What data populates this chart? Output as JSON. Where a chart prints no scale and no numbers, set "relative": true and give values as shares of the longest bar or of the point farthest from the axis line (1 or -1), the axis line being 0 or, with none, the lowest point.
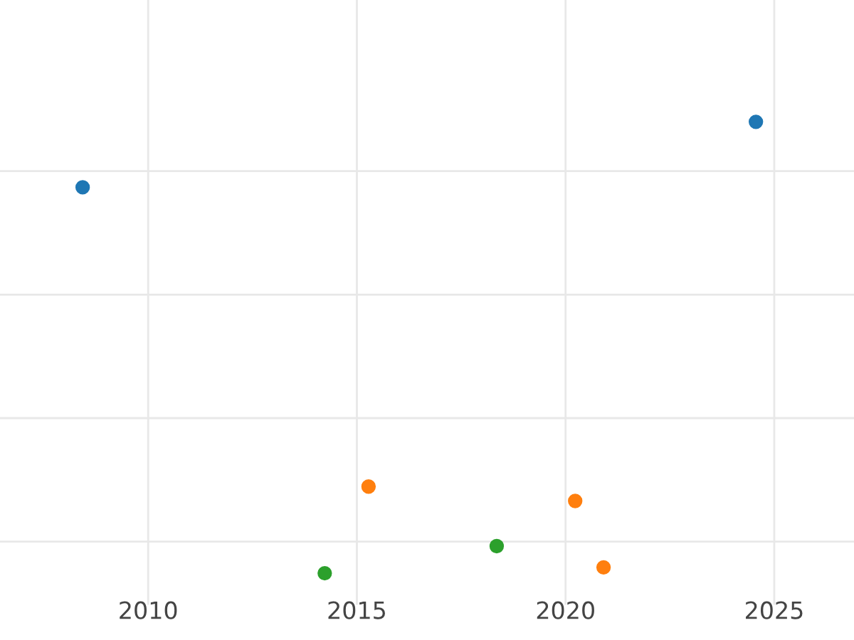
{
  "chart_data": {
    "type": "scatter",
    "relative": true,
    "xlim": [
      2006.45,
      2026.91
    ],
    "xticks": [
      2010,
      2015,
      2020,
      2025
    ],
    "tick_labels": "x",
    "grid": true,
    "marker": "circle",
    "series": [
      {
        "color": "#1f77b4",
        "x": [
          2008.43,
          2024.56
        ],
        "values": [
          0.855,
          1
        ]
      },
      {
        "color": "#ff7f0e",
        "x": [
          2015.28,
          2020.23,
          2020.91
        ],
        "values": [
          0.192,
          0.16,
          0.013
        ]
      },
      {
        "color": "#2ca02c",
        "x": [
          2014.23,
          2018.35
        ],
        "values": [
          0,
          0.06
        ]
      }
    ]
  }
}
